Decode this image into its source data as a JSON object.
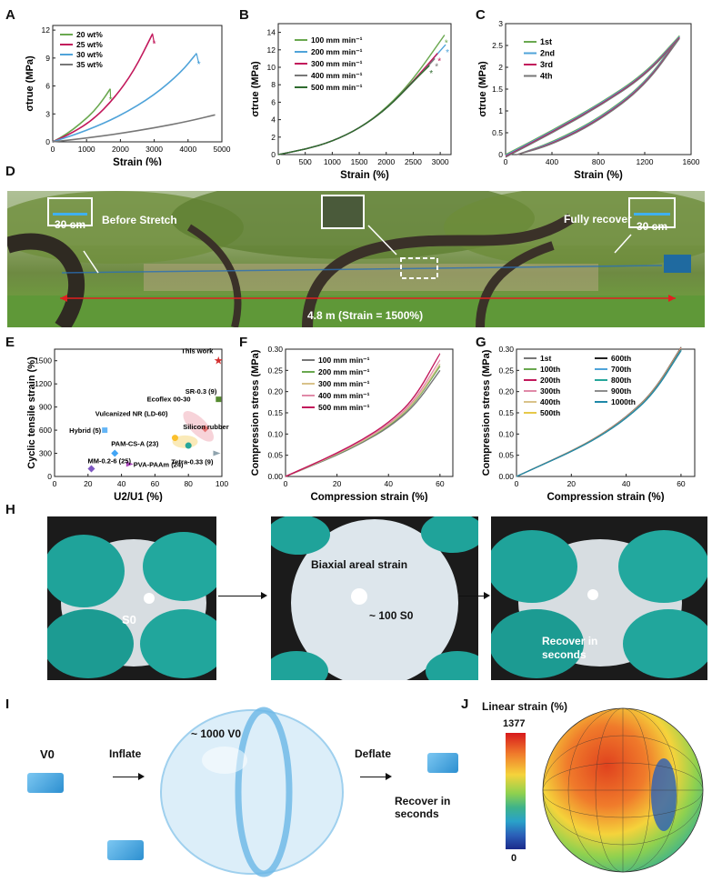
{
  "panels": {
    "A": "A",
    "B": "B",
    "C": "C",
    "D": "D",
    "E": "E",
    "F": "F",
    "G": "G",
    "H": "H",
    "I": "I",
    "J": "J"
  },
  "chart_data": [
    {
      "id": "A",
      "type": "line",
      "ylabel": "σtrue (MPa)",
      "xlabel": "Strain (%)",
      "xlim": [
        0,
        5000
      ],
      "ylim": [
        0,
        12.5
      ],
      "xticks": [
        0,
        1000,
        2000,
        3000,
        4000,
        5000
      ],
      "yticks": [
        0,
        3,
        6,
        9,
        12
      ],
      "legend": "top-left",
      "series": [
        {
          "name": "20 wt%",
          "color": "#6aa84f",
          "x": [
            0,
            400,
            800,
            1200,
            1500,
            1700
          ],
          "y": [
            0,
            0.8,
            1.9,
            3.2,
            4.6,
            5.7
          ],
          "break": [
            1710,
            4.6
          ]
        },
        {
          "name": "25 wt%",
          "color": "#c2185b",
          "x": [
            0,
            600,
            1200,
            1800,
            2400,
            2950
          ],
          "y": [
            0,
            1.0,
            2.4,
            4.6,
            7.6,
            11.6
          ],
          "break": [
            3000,
            10.6
          ]
        },
        {
          "name": "30 wt%",
          "color": "#4fa3d9",
          "x": [
            0,
            1000,
            2000,
            3000,
            3800,
            4250
          ],
          "y": [
            0,
            1.2,
            2.8,
            5.0,
            7.5,
            9.5
          ],
          "break": [
            4320,
            8.4
          ]
        },
        {
          "name": "35 wt%",
          "color": "#777777",
          "x": [
            0,
            1000,
            2000,
            3000,
            4000,
            4800
          ],
          "y": [
            0,
            0.4,
            0.9,
            1.5,
            2.2,
            2.9
          ]
        }
      ]
    },
    {
      "id": "B",
      "type": "line",
      "ylabel": "σtrue (MPa)",
      "xlabel": "Strain (%)",
      "xlim": [
        0,
        3200
      ],
      "ylim": [
        0,
        15
      ],
      "xticks": [
        0,
        500,
        1000,
        1500,
        2000,
        2500,
        3000
      ],
      "yticks": [
        0,
        2,
        4,
        6,
        8,
        10,
        12,
        14
      ],
      "legend": "top-left",
      "series": [
        {
          "name": "100 mm min⁻¹",
          "color": "#6aa84f",
          "x": [
            0,
            500,
            1000,
            1500,
            2000,
            2500,
            3080
          ],
          "y": [
            0,
            0.6,
            1.5,
            3.0,
            5.3,
            8.6,
            13.7
          ]
        },
        {
          "name": "200 mm min⁻¹",
          "color": "#4fa3d9",
          "x": [
            0,
            500,
            1000,
            1500,
            2000,
            2500,
            3100
          ],
          "y": [
            0,
            0.6,
            1.5,
            3.0,
            5.2,
            8.4,
            12.6
          ]
        },
        {
          "name": "300 mm min⁻¹",
          "color": "#c2185b",
          "x": [
            0,
            500,
            1000,
            1500,
            2000,
            2500,
            2950
          ],
          "y": [
            0,
            0.6,
            1.5,
            3.0,
            5.2,
            8.4,
            11.6
          ]
        },
        {
          "name": "400 mm min⁻¹",
          "color": "#777777",
          "x": [
            0,
            500,
            1000,
            1500,
            2000,
            2500,
            2900
          ],
          "y": [
            0,
            0.6,
            1.5,
            3.0,
            5.2,
            8.3,
            11.0
          ]
        },
        {
          "name": "500 mm min⁻¹",
          "color": "#2e6b2e",
          "x": [
            0,
            500,
            1000,
            1500,
            2000,
            2500,
            2800
          ],
          "y": [
            0,
            0.6,
            1.5,
            3.0,
            5.2,
            8.4,
            10.2
          ]
        }
      ]
    },
    {
      "id": "C",
      "type": "line",
      "ylabel": "σtrue (MPa)",
      "xlabel": "Strain (%)",
      "xlim": [
        0,
        1600
      ],
      "ylim": [
        0,
        3.0
      ],
      "xticks": [
        0,
        400,
        800,
        1200,
        1600
      ],
      "yticks": [
        0,
        0.5,
        1.0,
        1.5,
        2.0,
        2.5,
        3.0
      ],
      "legend": "top-left",
      "series": [
        {
          "name": "1st",
          "color": "#6aa84f"
        },
        {
          "name": "2nd",
          "color": "#4fa3d9"
        },
        {
          "name": "3rd",
          "color": "#c2185b"
        },
        {
          "name": "4th",
          "color": "#777777"
        }
      ],
      "loading": {
        "x": [
          0,
          400,
          800,
          1200,
          1500
        ],
        "y": [
          0,
          0.55,
          1.15,
          1.85,
          2.72
        ]
      },
      "unloading": {
        "x": [
          1500,
          1200,
          800,
          400,
          100
        ],
        "y": [
          2.72,
          1.62,
          0.82,
          0.28,
          0
        ]
      }
    },
    {
      "id": "E",
      "type": "scatter",
      "ylabel": "Cyclic tensile strain (%)",
      "xlabel": "U2/U1 (%)",
      "xlim": [
        0,
        100
      ],
      "ylim": [
        0,
        1650
      ],
      "xticks": [
        0,
        20,
        40,
        60,
        80,
        100
      ],
      "yticks": [
        0,
        300,
        600,
        900,
        1200,
        1500
      ],
      "points": [
        {
          "label": "This work",
          "x": 98,
          "y": 1500,
          "color": "#d32f2f",
          "marker": "star"
        },
        {
          "label": "SR-0.3 (9)",
          "x": 98,
          "y": 1000,
          "color": "#558b2f",
          "marker": "square"
        },
        {
          "label": "Ecoflex 00-30",
          "x": 90,
          "y": 620,
          "color": "#e57373",
          "marker": "diamond"
        },
        {
          "label": "Vulcanized NR (LD-60)",
          "x": 72,
          "y": 500,
          "color": "#fbc02d",
          "marker": "circle"
        },
        {
          "label": "Silicon rubber (H | V-2)",
          "x": 80,
          "y": 400,
          "color": "#26a69a",
          "marker": "circle"
        },
        {
          "label": "Hybrid (5)",
          "x": 30,
          "y": 600,
          "color": "#64b5f6",
          "marker": "square"
        },
        {
          "label": "PAM-CS-A (23)",
          "x": 36,
          "y": 300,
          "color": "#42a5f5",
          "marker": "diamond"
        },
        {
          "label": "PVA-PAAm (24)",
          "x": 45,
          "y": 160,
          "color": "#ab47bc",
          "marker": "triangle"
        },
        {
          "label": "MM-0.2-6 (25)",
          "x": 22,
          "y": 100,
          "color": "#7e57c2",
          "marker": "diamond"
        },
        {
          "label": "Tetra-0.33 (9)",
          "x": 97,
          "y": 300,
          "color": "#90a4ae",
          "marker": "triangle"
        }
      ]
    },
    {
      "id": "F",
      "type": "line",
      "ylabel": "Compression stress (MPa)",
      "xlabel": "Compression strain (%)",
      "xlim": [
        0,
        65
      ],
      "ylim": [
        0,
        0.3
      ],
      "xticks": [
        0,
        20,
        40,
        60
      ],
      "yticks": [
        0.0,
        0.05,
        0.1,
        0.15,
        0.2,
        0.25,
        0.3
      ],
      "legend": "top-left",
      "series": [
        {
          "name": "100 mm min⁻¹",
          "color": "#777777",
          "x": [
            0,
            10,
            20,
            30,
            40,
            50,
            60
          ],
          "y": [
            0,
            0.025,
            0.05,
            0.08,
            0.115,
            0.165,
            0.25
          ]
        },
        {
          "name": "200 mm min⁻¹",
          "color": "#6aa84f",
          "x": [
            0,
            10,
            20,
            30,
            40,
            50,
            60
          ],
          "y": [
            0,
            0.026,
            0.052,
            0.082,
            0.118,
            0.17,
            0.26
          ]
        },
        {
          "name": "300 mm min⁻¹",
          "color": "#d9c28a",
          "x": [
            0,
            10,
            20,
            30,
            40,
            50,
            60
          ],
          "y": [
            0,
            0.026,
            0.053,
            0.083,
            0.12,
            0.172,
            0.265
          ]
        },
        {
          "name": "400 mm min⁻¹",
          "color": "#e08aa8",
          "x": [
            0,
            10,
            20,
            30,
            40,
            50,
            60
          ],
          "y": [
            0,
            0.027,
            0.054,
            0.085,
            0.122,
            0.176,
            0.275
          ]
        },
        {
          "name": "500 mm min⁻¹",
          "color": "#c2185b",
          "x": [
            0,
            10,
            20,
            30,
            40,
            50,
            60
          ],
          "y": [
            0,
            0.027,
            0.055,
            0.087,
            0.126,
            0.182,
            0.29
          ]
        }
      ]
    },
    {
      "id": "G",
      "type": "line",
      "ylabel": "Compression stress (MPa)",
      "xlabel": "Compression strain (%)",
      "xlim": [
        0,
        65
      ],
      "ylim": [
        0,
        0.3
      ],
      "xticks": [
        0,
        20,
        40,
        60
      ],
      "yticks": [
        0.0,
        0.05,
        0.1,
        0.15,
        0.2,
        0.25,
        0.3
      ],
      "legend": "top-left",
      "series": [
        {
          "name": "1st",
          "color": "#777777"
        },
        {
          "name": "100th",
          "color": "#6aa84f"
        },
        {
          "name": "200th",
          "color": "#c2185b"
        },
        {
          "name": "300th",
          "color": "#e08aa8"
        },
        {
          "name": "400th",
          "color": "#d9c28a"
        },
        {
          "name": "500th",
          "color": "#e6c84a"
        },
        {
          "name": "600th",
          "color": "#222222"
        },
        {
          "name": "700th",
          "color": "#4fa3d9"
        },
        {
          "name": "800th",
          "color": "#26a69a"
        },
        {
          "name": "900th",
          "color": "#8d8d8d"
        },
        {
          "name": "1000th",
          "color": "#1e88a8"
        }
      ],
      "curve": {
        "x": [
          0,
          10,
          20,
          30,
          40,
          50,
          60
        ],
        "y": [
          0,
          0.03,
          0.06,
          0.095,
          0.14,
          0.2,
          0.305
        ]
      }
    }
  ],
  "panelD": {
    "before_scale": "30 cm",
    "before_label": "Before Stretch",
    "recover_scale": "30 cm",
    "recover_label": "Fully recover",
    "distance": "4.8 m (Strain = 1500%)"
  },
  "panelH": {
    "s0": "S0",
    "biaxial": "Biaxial areal strain",
    "areal": "~ 100 S0",
    "recover": "Recover in seconds"
  },
  "panelI": {
    "v0": "V0",
    "inflate": "Inflate",
    "volume": "~ 1000 V0",
    "deflate": "Deflate",
    "recover": "Recover in seconds"
  },
  "panelJ": {
    "title": "Linear strain (%)",
    "max": "1377",
    "min": "0"
  }
}
